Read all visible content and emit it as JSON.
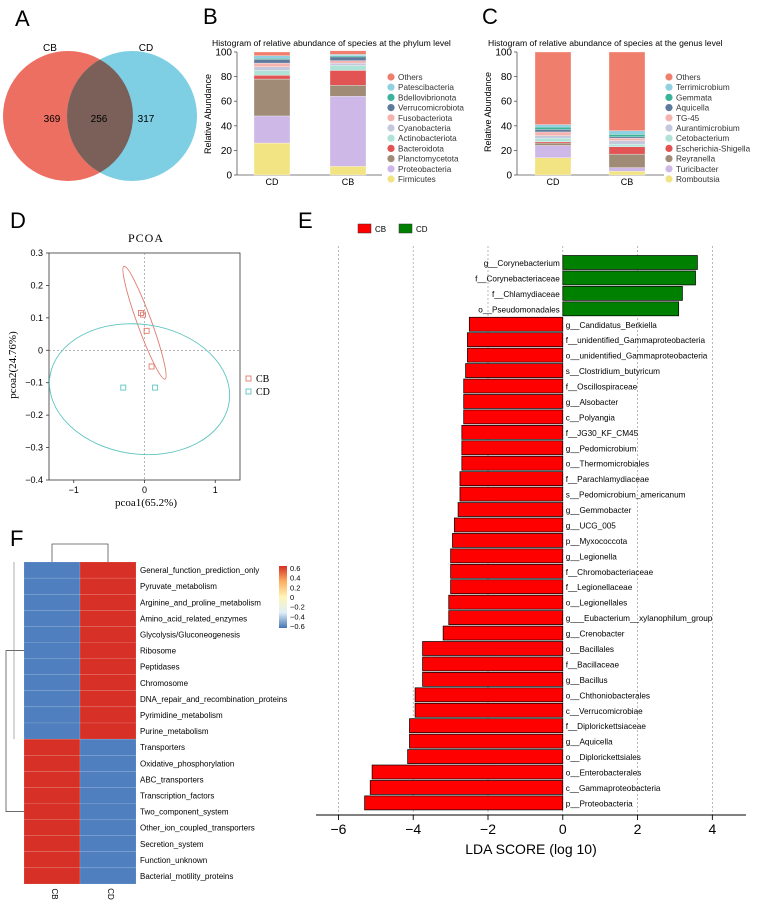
{
  "panels": {
    "a": "A",
    "b": "B",
    "c": "C",
    "d": "D",
    "e": "E",
    "f": "F"
  },
  "chart_data": [
    {
      "type": "venn",
      "sets": [
        "CB",
        "CD"
      ],
      "only_left": "369",
      "overlap": "256",
      "only_right": "317",
      "colors": [
        "#ed6f62",
        "#7fcfe4",
        "#7a6058"
      ]
    },
    {
      "type": "bar",
      "stacked": true,
      "title": "Histogram of relative abundance of species at the phylum level",
      "ylabel": "Relative Abundance",
      "ylim": [
        0,
        100
      ],
      "yticks": [
        "0",
        "20",
        "40",
        "60",
        "80",
        "100"
      ],
      "categories": [
        "CD",
        "CB"
      ],
      "legend": [
        "Others",
        "Patescibacteria",
        "Bdellovibrionota",
        "Verrucomicrobiota",
        "Fusobacteriota",
        "Cyanobacteria",
        "Actinobacteriota",
        "Bacteroidota",
        "Planctomycetota",
        "Proteobacteria",
        "Firmicutes"
      ],
      "series": [
        {
          "name": "Firmicutes",
          "color": "#f2e383",
          "values": [
            26,
            7
          ]
        },
        {
          "name": "Proteobacteria",
          "color": "#cdb8e8",
          "values": [
            22,
            57
          ]
        },
        {
          "name": "Planctomycetota",
          "color": "#a08b77",
          "values": [
            30,
            9
          ]
        },
        {
          "name": "Bacteroidota",
          "color": "#e25454",
          "values": [
            3,
            12
          ]
        },
        {
          "name": "Actinobacteriota",
          "color": "#b0e3d7",
          "values": [
            4,
            4
          ]
        },
        {
          "name": "Cyanobacteria",
          "color": "#c4c8dd",
          "values": [
            3,
            2
          ]
        },
        {
          "name": "Fusobacteriota",
          "color": "#f5b3b0",
          "values": [
            3,
            2
          ]
        },
        {
          "name": "Verrucomicrobiota",
          "color": "#5e7b9e",
          "values": [
            3,
            3
          ]
        },
        {
          "name": "Bdellovibrionota",
          "color": "#3bb39b",
          "values": [
            1,
            1
          ]
        },
        {
          "name": "Patescibacteria",
          "color": "#8fd1e0",
          "values": [
            2,
            1
          ]
        },
        {
          "name": "Others",
          "color": "#ef7e6d",
          "values": [
            3,
            3
          ]
        }
      ]
    },
    {
      "type": "bar",
      "stacked": true,
      "title": "Histogram of relative abundance of species at the genus level",
      "ylabel": "Relative Abundance",
      "ylim": [
        0,
        100
      ],
      "yticks": [
        "0",
        "20",
        "40",
        "60",
        "80",
        "100"
      ],
      "categories": [
        "CD",
        "CB"
      ],
      "legend": [
        "Others",
        "Terrimicrobium",
        "Gemmata",
        "Aquicella",
        "TG-45",
        "Aurantimicrobium",
        "Cetobacterium",
        "Escherichia-Shigella",
        "Reyranella",
        "Turicibacter",
        "Romboutsia"
      ],
      "series": [
        {
          "name": "Romboutsia",
          "color": "#f2e383",
          "values": [
            14,
            3
          ]
        },
        {
          "name": "Turicibacter",
          "color": "#cdb8e8",
          "values": [
            10,
            3
          ]
        },
        {
          "name": "Reyranella",
          "color": "#a08b77",
          "values": [
            2,
            11
          ]
        },
        {
          "name": "Escherichia-Shigella",
          "color": "#e25454",
          "values": [
            1,
            6
          ]
        },
        {
          "name": "Cetobacterium",
          "color": "#b0e3d7",
          "values": [
            3,
            2
          ]
        },
        {
          "name": "Aurantimicrobium",
          "color": "#c4c8dd",
          "values": [
            2,
            3
          ]
        },
        {
          "name": "TG-45",
          "color": "#f5b3b0",
          "values": [
            3,
            2
          ]
        },
        {
          "name": "Aquicella",
          "color": "#5e7b9e",
          "values": [
            2,
            1
          ]
        },
        {
          "name": "Gemmata",
          "color": "#3bb39b",
          "values": [
            2,
            2
          ]
        },
        {
          "name": "Terrimicrobium",
          "color": "#8fd1e0",
          "values": [
            2,
            3
          ]
        },
        {
          "name": "Others",
          "color": "#ef7e6d",
          "values": [
            59,
            64
          ]
        }
      ]
    },
    {
      "type": "scatter",
      "title": "PCOA",
      "xlabel": "pcoa1(65.2%)",
      "ylabel": "pcoa2(24.76%)",
      "xlim": [
        -1.35,
        1.35
      ],
      "ylim": [
        -0.4,
        0.3
      ],
      "xticks": [
        -1,
        0,
        1
      ],
      "yticks": [
        -0.4,
        -0.3,
        -0.2,
        -0.1,
        0,
        0.1,
        0.2,
        0.3
      ],
      "xtick_labels": [
        "−1",
        "0",
        "1"
      ],
      "ytick_labels": [
        "−0.4",
        "−0.3",
        "−0.2",
        "−0.1",
        "0",
        "0.1",
        "0.2",
        "0.3"
      ],
      "series": [
        {
          "name": "CB",
          "color": "#e07b6f",
          "points": [
            [
              -0.05,
              0.115
            ],
            [
              -0.02,
              0.11
            ],
            [
              0.03,
              0.06
            ],
            [
              0.1,
              -0.05
            ]
          ],
          "ellipse": {
            "cx": 0.0,
            "cy": 0.085,
            "rx": 0.1,
            "ry": 0.185,
            "angle": -20
          }
        },
        {
          "name": "CD",
          "color": "#5dc4c0",
          "points": [
            [
              -0.3,
              -0.115
            ],
            [
              0.15,
              -0.115
            ]
          ],
          "ellipse": {
            "cx": -0.07,
            "cy": -0.12,
            "rx": 1.28,
            "ry": 0.2,
            "angle": 8
          }
        }
      ]
    },
    {
      "type": "bar",
      "orientation": "horizontal",
      "xlabel": "LDA SCORE (log 10)",
      "xlim": [
        -6.6,
        4.9
      ],
      "xticks": [
        -6,
        -4,
        -2,
        0,
        2,
        4
      ],
      "xtick_labels": [
        "−6",
        "−4",
        "−2",
        "0",
        "2",
        "4"
      ],
      "legend": [
        {
          "name": "CB",
          "color": "#ff0000"
        },
        {
          "name": "CD",
          "color": "#008000"
        }
      ],
      "categories": [
        "g__Corynebacterium",
        "f__Corynebacteriaceae",
        "f__Chlamydiaceae",
        "o__Pseudomonadales",
        "g__Candidatus_Berkiella",
        "f__unidentified_Gammaproteobacteria",
        "o__unidentified_Gammaproteobacteria",
        "s__Clostridium_butyricum",
        "f__Oscillospiraceae",
        "g__Alsobacter",
        "c__Polyangia",
        "f__JG30_KF_CM45",
        "g__Pedomicrobium",
        "o__Thermomicrobiales",
        "f__Parachlamydiaceae",
        "s__Pedomicrobium_americanum",
        "g__Gemmobacter",
        "g__UCG_005",
        "p__Myxococcota",
        "g__Legionella",
        "f__Chromobacteriaceae",
        "f__Legionellaceae",
        "o__Legionellales",
        "g___Eubacterium__xylanophilum_group",
        "g__Crenobacter",
        "o__Bacillales",
        "f__Bacillaceae",
        "g__Bacillus",
        "o__Chthoniobacterales",
        "c__Verrucomicrobiae",
        "f__Diplorickettsiaceae",
        "g__Aquicella",
        "o__Diplorickettsiales",
        "o__Enterobacterales",
        "c__Gammaproteobacteria",
        "p__Proteobacteria"
      ],
      "values": [
        3.6,
        3.55,
        3.2,
        3.1,
        -2.5,
        -2.55,
        -2.55,
        -2.6,
        -2.65,
        -2.65,
        -2.65,
        -2.7,
        -2.7,
        -2.7,
        -2.75,
        -2.75,
        -2.8,
        -2.9,
        -2.95,
        -3.0,
        -3.0,
        -3.0,
        -3.05,
        -3.05,
        -3.2,
        -3.75,
        -3.75,
        -3.75,
        -3.95,
        -3.95,
        -4.1,
        -4.1,
        -4.15,
        -5.1,
        -5.15,
        -5.3
      ],
      "groups": [
        "CD",
        "CD",
        "CD",
        "CD",
        "CB",
        "CB",
        "CB",
        "CB",
        "CB",
        "CB",
        "CB",
        "CB",
        "CB",
        "CB",
        "CB",
        "CB",
        "CB",
        "CB",
        "CB",
        "CB",
        "CB",
        "CB",
        "CB",
        "CB",
        "CB",
        "CB",
        "CB",
        "CB",
        "CB",
        "CB",
        "CB",
        "CB",
        "CB",
        "CB",
        "CB",
        "CB"
      ]
    },
    {
      "type": "heatmap",
      "columns": [
        "CB",
        "CD"
      ],
      "rows": [
        "General_function_prediction_only",
        "Pyruvate_metabolism",
        "Arginine_and_proline_metabolism",
        "Amino_acid_related_enzymes",
        "Glycolysis/Gluconeogenesis",
        "Ribosome",
        "Peptidases",
        "Chromosome",
        "DNA_repair_and_recombination_proteins",
        "Pyrimidine_metabolism",
        "Purine_metabolism",
        "Transporters",
        "Oxidative_phosphorylation",
        "ABC_transporters",
        "Transcription_factors",
        "Two_component_system",
        "Other_ion_coupled_transporters",
        "Secretion_system",
        "Function_unknown",
        "Bacterial_motility_proteins"
      ],
      "values": [
        [
          -0.7,
          0.7
        ],
        [
          -0.7,
          0.7
        ],
        [
          -0.7,
          0.7
        ],
        [
          -0.7,
          0.7
        ],
        [
          -0.7,
          0.7
        ],
        [
          -0.7,
          0.7
        ],
        [
          -0.7,
          0.7
        ],
        [
          -0.7,
          0.7
        ],
        [
          -0.7,
          0.7
        ],
        [
          -0.7,
          0.7
        ],
        [
          -0.7,
          0.7
        ],
        [
          0.7,
          -0.7
        ],
        [
          0.7,
          -0.7
        ],
        [
          0.7,
          -0.7
        ],
        [
          0.7,
          -0.7
        ],
        [
          0.7,
          -0.7
        ],
        [
          0.7,
          -0.7
        ],
        [
          0.7,
          -0.7
        ],
        [
          0.7,
          -0.7
        ],
        [
          0.7,
          -0.7
        ]
      ],
      "colorbar_ticks": [
        "0.6",
        "0.4",
        "0.2",
        "0",
        "−0.2",
        "−0.4",
        "−0.6"
      ],
      "colorbar_colors": [
        "#d73027",
        "#fdae61",
        "#fff5b8",
        "#e0f0f8",
        "#4575b4"
      ]
    }
  ]
}
